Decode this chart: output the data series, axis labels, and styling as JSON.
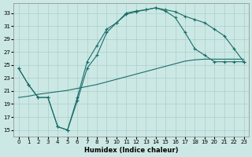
{
  "xlabel": "Humidex (Indice chaleur)",
  "background_color": "#cce8e4",
  "grid_color": "#aacfcc",
  "line_color": "#1a6e6a",
  "xlim": [
    -0.5,
    23.5
  ],
  "ylim": [
    14,
    34.5
  ],
  "xticks": [
    0,
    1,
    2,
    3,
    4,
    5,
    6,
    7,
    8,
    9,
    10,
    11,
    12,
    13,
    14,
    15,
    16,
    17,
    18,
    19,
    20,
    21,
    22,
    23
  ],
  "yticks": [
    15,
    17,
    19,
    21,
    23,
    25,
    27,
    29,
    31,
    33
  ],
  "curve1_x": [
    0,
    1,
    2,
    3,
    4,
    5,
    6,
    7,
    8,
    9,
    10,
    11,
    12,
    13,
    14,
    15,
    16,
    17,
    18,
    19,
    20,
    21,
    22,
    23
  ],
  "curve1_y": [
    24.5,
    22.0,
    20.0,
    20.0,
    15.5,
    15.0,
    20.0,
    25.5,
    28.0,
    30.5,
    31.5,
    33.0,
    33.3,
    33.5,
    33.8,
    33.5,
    33.2,
    32.5,
    32.0,
    31.5,
    30.5,
    29.5,
    27.5,
    25.5
  ],
  "curve2_x": [
    0,
    1,
    2,
    3,
    4,
    5,
    6,
    7,
    8,
    9,
    10,
    11,
    12,
    13,
    14,
    15,
    16,
    17,
    18,
    19,
    20,
    21,
    22,
    23
  ],
  "curve2_y": [
    24.5,
    22.0,
    20.0,
    20.0,
    15.5,
    15.0,
    19.5,
    24.5,
    26.5,
    30.0,
    31.5,
    32.8,
    33.2,
    33.5,
    33.8,
    33.3,
    32.3,
    30.0,
    27.5,
    26.5,
    25.5,
    25.5,
    25.5,
    25.5
  ],
  "curve3_x": [
    0,
    1,
    2,
    3,
    4,
    5,
    6,
    7,
    8,
    9,
    10,
    11,
    12,
    13,
    14,
    15,
    16,
    17,
    18,
    19,
    20,
    21,
    22,
    23
  ],
  "curve3_y": [
    20.0,
    20.2,
    20.5,
    20.7,
    20.9,
    21.1,
    21.4,
    21.7,
    22.0,
    22.4,
    22.8,
    23.2,
    23.6,
    24.0,
    24.4,
    24.8,
    25.2,
    25.6,
    25.8,
    25.9,
    25.9,
    25.9,
    25.9,
    25.9
  ]
}
